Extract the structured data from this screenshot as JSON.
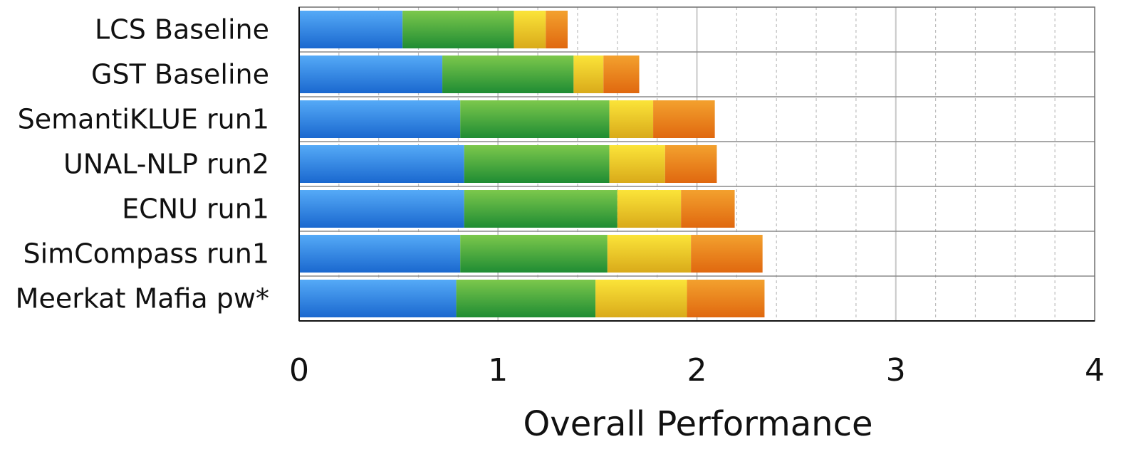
{
  "chart_data": {
    "type": "bar",
    "orientation": "horizontal",
    "stacked": true,
    "title": "",
    "xlabel": "Overall Performance",
    "ylabel": "",
    "xlim": [
      0,
      4
    ],
    "x_ticks": [
      "0",
      "1",
      "2",
      "3",
      "4"
    ],
    "grid": "vertical dashed minor and solid major",
    "legend": "none",
    "categories": [
      "LCS Baseline",
      "GST Baseline",
      "SemantiKLUE run1",
      "UNAL-NLP run2",
      "ECNU run1",
      "SimCompass run1",
      "Meerkat Mafia pw*"
    ],
    "series": [
      {
        "color": "#2b7fe0",
        "values": [
          0.52,
          0.72,
          0.81,
          0.83,
          0.83,
          0.81,
          0.79
        ]
      },
      {
        "color": "#3fa83b",
        "values": [
          0.56,
          0.66,
          0.75,
          0.73,
          0.77,
          0.74,
          0.7
        ]
      },
      {
        "color": "#f0cc1e",
        "values": [
          0.16,
          0.15,
          0.22,
          0.28,
          0.32,
          0.42,
          0.46
        ]
      },
      {
        "color": "#ec8a1c",
        "values": [
          0.11,
          0.18,
          0.31,
          0.26,
          0.27,
          0.36,
          0.39
        ]
      }
    ]
  }
}
